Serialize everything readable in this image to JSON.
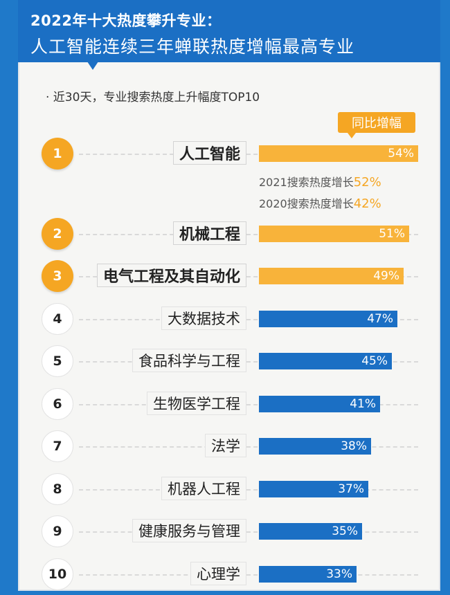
{
  "header": {
    "title_line1": "2022年十大热度攀升专业：",
    "title_line2": "人工智能连续三年蝉联热度增幅最高专业"
  },
  "subtitle": "· 近30天，专业搜索热度上升幅度TOP10",
  "legend": "同比增幅",
  "chart_data": {
    "type": "bar",
    "orientation": "horizontal",
    "categories": [
      "人工智能",
      "机械工程",
      "电气工程及其自动化",
      "大数据技术",
      "食品科学与工程",
      "生物医学工程",
      "法学",
      "机器人工程",
      "健康服务与管理",
      "心理学"
    ],
    "ranks": [
      "1",
      "2",
      "3",
      "4",
      "5",
      "6",
      "7",
      "8",
      "9",
      "10"
    ],
    "values": [
      54,
      51,
      49,
      47,
      45,
      41,
      38,
      37,
      35,
      33
    ],
    "labels": [
      "54%",
      "51%",
      "49%",
      "47%",
      "45%",
      "41%",
      "38%",
      "37%",
      "35%",
      "33%"
    ],
    "highlight_colors": [
      "#f8b33a",
      "#f8b33a",
      "#f8b33a",
      "#1b6fc4",
      "#1b6fc4",
      "#1b6fc4",
      "#1b6fc4",
      "#1b6fc4",
      "#1b6fc4",
      "#1b6fc4"
    ],
    "xlim": [
      0,
      60
    ],
    "annotations": [
      {
        "text": "2021搜索热度增长",
        "value": "52%"
      },
      {
        "text": "2020搜索热度增长",
        "value": "42%"
      }
    ]
  }
}
